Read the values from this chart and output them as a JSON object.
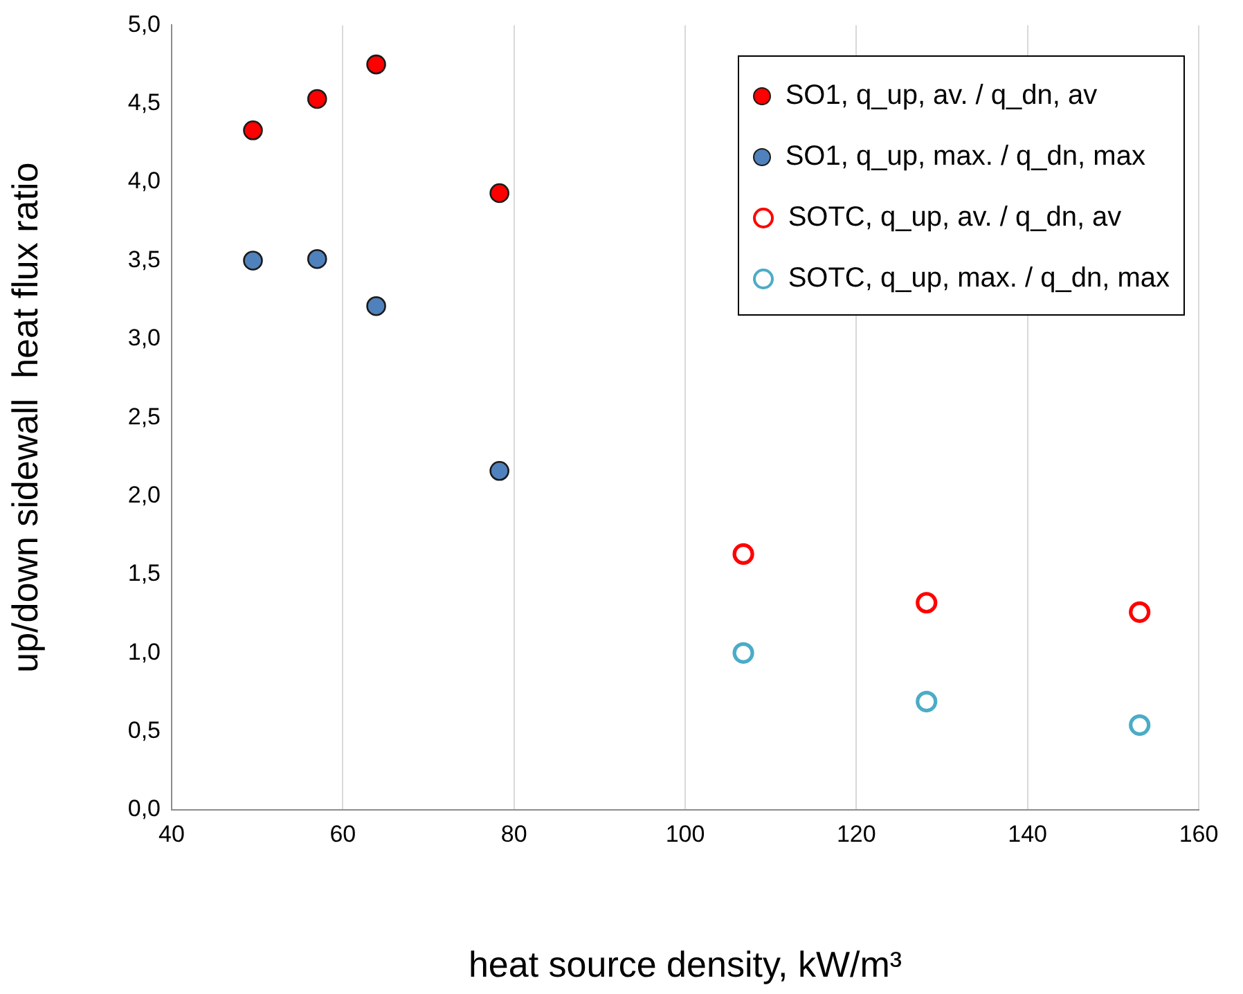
{
  "chart_data": {
    "type": "scatter",
    "xlabel": "heat source density, kW/m³",
    "ylabel": "up/down sidewall  heat flux ratio",
    "xlim": [
      40,
      160
    ],
    "xticks": [
      40,
      60,
      80,
      100,
      120,
      140,
      160
    ],
    "ylim": [
      0,
      5
    ],
    "yticks": [
      {
        "value": 0,
        "label": "0,0"
      },
      {
        "value": 0.5,
        "label": "0,5"
      },
      {
        "value": 1,
        "label": "1,0"
      },
      {
        "value": 1.5,
        "label": "1,5"
      },
      {
        "value": 2,
        "label": "2,0"
      },
      {
        "value": 2.5,
        "label": "2,5"
      },
      {
        "value": 3,
        "label": "3,0"
      },
      {
        "value": 3.5,
        "label": "3,5"
      },
      {
        "value": 4,
        "label": "4,0"
      },
      {
        "value": 4.5,
        "label": "4,5"
      },
      {
        "value": 5,
        "label": "5,0"
      }
    ],
    "grid": "x",
    "legend": "top right",
    "marker": "circle",
    "series": [
      {
        "name": "SO1, q_up, av. / q_dn, av",
        "color": "#ff0000",
        "x": [
          49.5,
          57,
          63.9,
          78.3
        ],
        "values": [
          4.33,
          4.53,
          4.75,
          3.93
        ]
      },
      {
        "name": "SO1, q_up, max. / q_dn, max",
        "color": "#4f81bd",
        "x": [
          49.5,
          57,
          63.9,
          78.3
        ],
        "values": [
          3.5,
          3.51,
          3.21,
          2.16
        ]
      },
      {
        "name": "SOTC, q_up, av. / q_dn, av",
        "color": "#ff0000",
        "colors": [
          "#ffffff",
          "#ffffff",
          "#ffffff"
        ],
        "x": [
          106.8,
          128.2,
          153.1
        ],
        "values": [
          1.63,
          1.32,
          1.26
        ]
      },
      {
        "name": "SOTC, q_up, max. / q_dn, max",
        "color": "#4bacc6",
        "colors": [
          "#ffffff",
          "#ffffff",
          "#ffffff"
        ],
        "x": [
          106.8,
          128.2,
          153.1
        ],
        "values": [
          1.0,
          0.69,
          0.54
        ]
      }
    ]
  }
}
